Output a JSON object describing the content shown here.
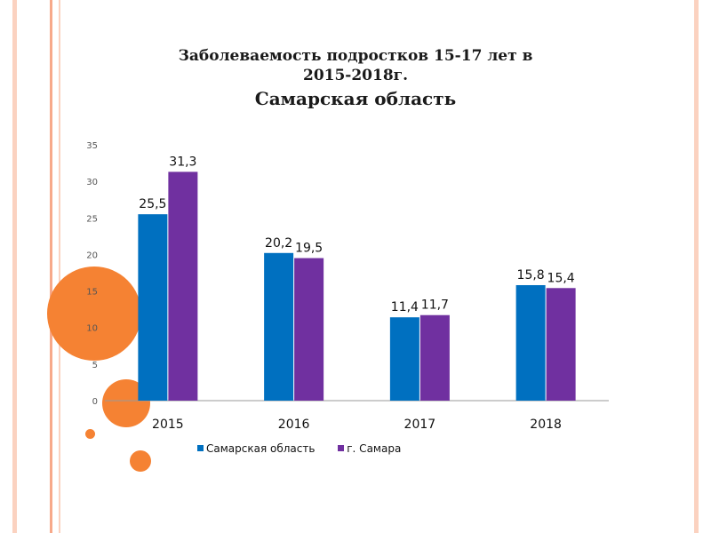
{
  "colors": {
    "series1": "#0070c0",
    "series2": "#7030a0",
    "stripe_outer": "#fbd2c0",
    "stripe_inner": "#f7a98a",
    "circle": "#f58233"
  },
  "chart_data": {
    "type": "bar",
    "title_lines": [
      "Заболеваемость подростков 15-17 лет в",
      "2015-2018г.",
      "Самарская область"
    ],
    "categories": [
      "2015",
      "2016",
      "2017",
      "2018"
    ],
    "series": [
      {
        "name": "Самарская область",
        "values": [
          25.5,
          20.2,
          11.4,
          15.8
        ],
        "labels": [
          "25,5",
          "20,2",
          "11,4",
          "15,8"
        ]
      },
      {
        "name": "г. Самара",
        "values": [
          31.3,
          19.5,
          11.7,
          15.4
        ],
        "labels": [
          "31,3",
          "19,5",
          "11,7",
          "15,4"
        ]
      }
    ],
    "ylim": [
      0,
      35
    ],
    "yticks": [
      "0",
      "5",
      "10",
      "15",
      "20",
      "25",
      "30",
      "35"
    ],
    "grid": false,
    "legend_position": "bottom"
  }
}
